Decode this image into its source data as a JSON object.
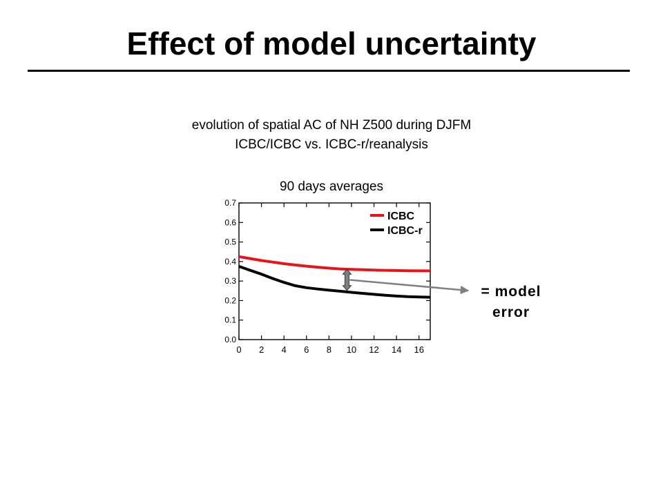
{
  "slide": {
    "title": "Effect of model uncertainty",
    "subtitle_line1": "evolution of spatial AC of NH Z500 during DJFM",
    "subtitle_line2": "ICBC/ICBC vs. ICBC-r/reanalysis"
  },
  "annotation": {
    "line1": "= model",
    "line2": "error",
    "arrow_color": "#808080"
  },
  "chart_data": {
    "type": "line",
    "title": "90 days averages",
    "xlabel": "",
    "ylabel": "",
    "xlim": [
      0,
      17
    ],
    "ylim": [
      0,
      0.7
    ],
    "xticks": [
      0,
      2,
      4,
      6,
      8,
      10,
      12,
      14,
      16
    ],
    "yticks": [
      0.0,
      0.1,
      0.2,
      0.3,
      0.4,
      0.5,
      0.6,
      0.7
    ],
    "legend": "top-right",
    "grid": false,
    "series": [
      {
        "name": "ICBC",
        "color": "#e8141b",
        "x": [
          0,
          1,
          2,
          3,
          4,
          5,
          6,
          7,
          8,
          9,
          10,
          11,
          12,
          13,
          14,
          15,
          16,
          17
        ],
        "values": [
          0.425,
          0.415,
          0.405,
          0.397,
          0.389,
          0.382,
          0.376,
          0.371,
          0.366,
          0.362,
          0.36,
          0.358,
          0.356,
          0.355,
          0.354,
          0.353,
          0.352,
          0.352
        ]
      },
      {
        "name": "ICBC-r",
        "color": "#000000",
        "x": [
          0,
          1,
          2,
          3,
          4,
          5,
          6,
          7,
          8,
          9,
          10,
          11,
          12,
          13,
          14,
          15,
          16,
          17
        ],
        "values": [
          0.375,
          0.355,
          0.335,
          0.313,
          0.293,
          0.276,
          0.266,
          0.259,
          0.253,
          0.248,
          0.242,
          0.237,
          0.232,
          0.227,
          0.223,
          0.22,
          0.218,
          0.217
        ]
      }
    ],
    "marker": {
      "x": 9.6,
      "y_low": 0.252,
      "y_high": 0.36
    }
  }
}
